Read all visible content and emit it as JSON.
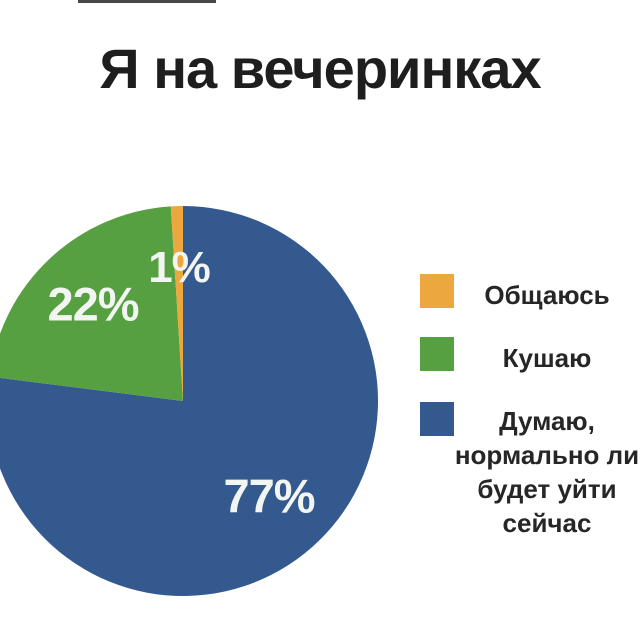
{
  "chart_data": {
    "type": "pie",
    "title": "Я на вечеринках",
    "slices": [
      {
        "id": "socialize",
        "label": "Общаюсь",
        "value": 1,
        "pct_label": "1%",
        "color": "#eda73f"
      },
      {
        "id": "eat",
        "label": "Кушаю",
        "value": 22,
        "pct_label": "22%",
        "color": "#57a042"
      },
      {
        "id": "think",
        "label": "Думаю,\nнормально ли\nбудет уйти\nсейчас",
        "value": 77,
        "pct_label": "77%",
        "color": "#33598e"
      }
    ],
    "draw_order": [
      2,
      1,
      0
    ],
    "start_angle_deg": 0,
    "direction": "clockwise",
    "legend_position": "right",
    "data_label_color": "#f2f5f1"
  },
  "legend": {
    "items": [
      {
        "label": "Общаюсь",
        "color": "#eda73f"
      },
      {
        "label": "Кушаю",
        "color": "#57a042"
      },
      {
        "label": "Думаю,\nнормально ли\nбудет уйти\nсейчас",
        "color": "#33598e"
      }
    ]
  }
}
